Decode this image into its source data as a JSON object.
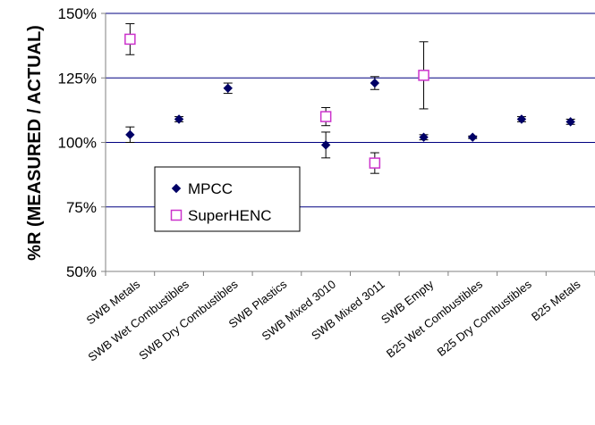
{
  "chart_data": {
    "type": "scatter",
    "title": "",
    "xlabel": "",
    "ylabel": "%R (MEASURED / ACTUAL)",
    "ylim": [
      50,
      150
    ],
    "yticks": [
      50,
      75,
      100,
      125,
      150
    ],
    "ytick_labels": [
      "50%",
      "75%",
      "100%",
      "125%",
      "150%"
    ],
    "grid": "horizontal",
    "legend_position": "left-middle",
    "categories": [
      "SWB Metals",
      "SWB Wet Combustibles",
      "SWB Dry Combustibles",
      "SWB Plastics",
      "SWB Mixed 3010",
      "SWB Mixed 3011",
      "SWB Empty",
      "B25 Wet Combustibles",
      "B25 Dry Combustibles",
      "B25 Metals"
    ],
    "series": [
      {
        "name": "MPCC",
        "marker": "diamond",
        "color": "#000066",
        "points": [
          {
            "i": 0,
            "value": 103,
            "err_low": 100,
            "err_high": 106
          },
          {
            "i": 1,
            "value": 109,
            "err_low": 108,
            "err_high": 110
          },
          {
            "i": 2,
            "value": 121,
            "err_low": 119,
            "err_high": 123
          },
          {
            "i": 4,
            "value": 99,
            "err_low": 94,
            "err_high": 104
          },
          {
            "i": 5,
            "value": 123,
            "err_low": 120.5,
            "err_high": 125.5
          },
          {
            "i": 6,
            "value": 102,
            "err_low": 101,
            "err_high": 103
          },
          {
            "i": 7,
            "value": 102,
            "err_low": 101.5,
            "err_high": 102.5
          },
          {
            "i": 8,
            "value": 109,
            "err_low": 108,
            "err_high": 110
          },
          {
            "i": 9,
            "value": 108,
            "err_low": 107,
            "err_high": 109
          }
        ]
      },
      {
        "name": "SuperHENC",
        "marker": "square-open",
        "color": "#cc33cc",
        "points": [
          {
            "i": 0,
            "value": 140,
            "err_low": 134,
            "err_high": 146
          },
          {
            "i": 4,
            "value": 110,
            "err_low": 106.5,
            "err_high": 113.5
          },
          {
            "i": 5,
            "value": 92,
            "err_low": 88,
            "err_high": 96
          },
          {
            "i": 6,
            "value": 126,
            "err_low": 113,
            "err_high": 139
          }
        ]
      }
    ],
    "colors": {
      "gridline": "#000080",
      "axis": "#808080",
      "mpcc": "#000066",
      "superhenc": "#cc33cc"
    }
  }
}
